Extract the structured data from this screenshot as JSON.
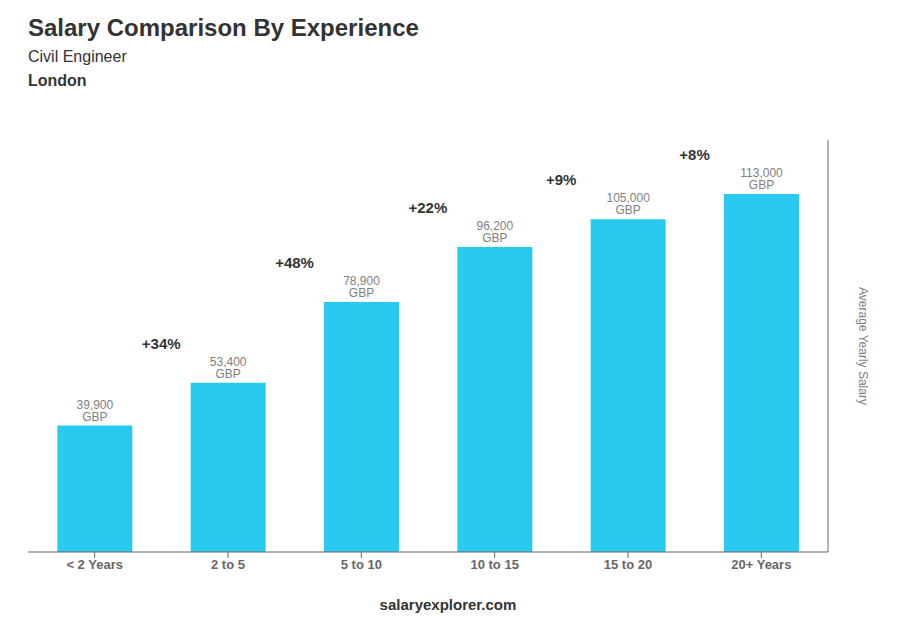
{
  "chart_data": {
    "type": "bar",
    "title": "Salary Comparison By Experience",
    "subtitle": [
      "Civil Engineer",
      "London"
    ],
    "ylabel": "Average Yearly Salary",
    "footer": [
      "salary",
      "explorer.com"
    ],
    "categories": [
      "< 2 Years",
      "2 to 5",
      "5 to 10",
      "10 to 15",
      "15 to 20",
      "20+ Years"
    ],
    "values": [
      39900,
      53400,
      78900,
      96200,
      105000,
      113000
    ],
    "value_labels": [
      "39,900 GBP",
      "53,400 GBP",
      "78,900 GBP",
      "96,200 GBP",
      "105,000 GBP",
      "113,000 GBP"
    ],
    "data_labels": true,
    "annotations": [
      "+34%",
      "+48%",
      "+22%",
      "+9%",
      "+8%"
    ],
    "color": "#29c9f0",
    "ylim": [
      0,
      130000
    ],
    "grid": false,
    "tick_labels": "x"
  }
}
